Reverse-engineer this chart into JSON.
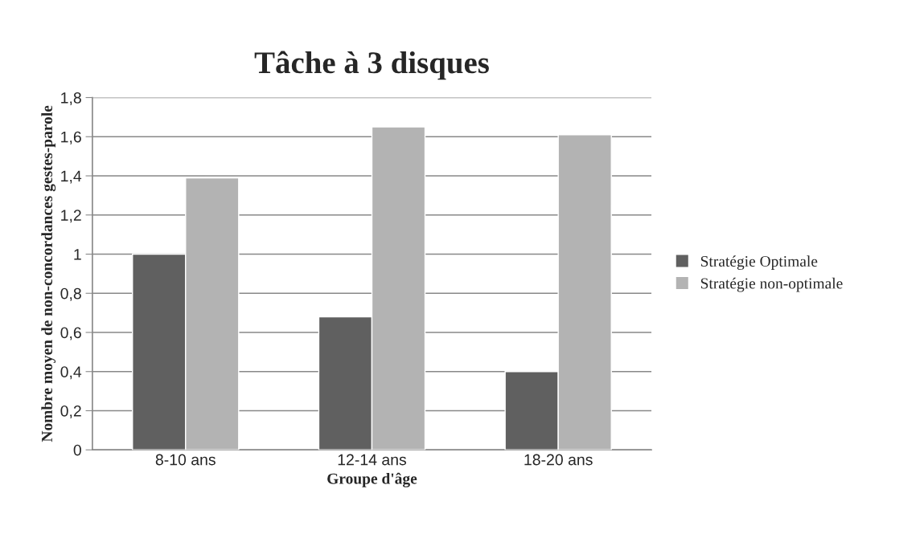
{
  "chart_data": {
    "type": "bar",
    "title": "Tâche à 3 disques",
    "xlabel": "Groupe d'âge",
    "ylabel": "Nombre moyen de non-concordances gestes-parole",
    "categories": [
      "8-10 ans",
      "12-14 ans",
      "18-20 ans"
    ],
    "series": [
      {
        "name": "Stratégie Optimale",
        "color": "#606060",
        "values": [
          1.0,
          0.68,
          0.4
        ]
      },
      {
        "name": "Stratégie non-optimale",
        "color": "#b3b3b3",
        "values": [
          1.39,
          1.65,
          1.61
        ]
      }
    ],
    "ylim": [
      0,
      1.8
    ],
    "yticks": [
      0,
      {
        "value": 0.2,
        "label": "0,2"
      },
      {
        "value": 0.4,
        "label": "0,4"
      },
      {
        "value": 0.6,
        "label": "0,6"
      },
      {
        "value": 0.8,
        "label": "0,8"
      },
      1,
      {
        "value": 1.2,
        "label": "1,2"
      },
      {
        "value": 1.4,
        "label": "1,4"
      },
      {
        "value": 1.6,
        "label": "1,6"
      },
      {
        "value": 1.8,
        "label": "1,8"
      }
    ],
    "grid": "y",
    "legend": "right"
  }
}
